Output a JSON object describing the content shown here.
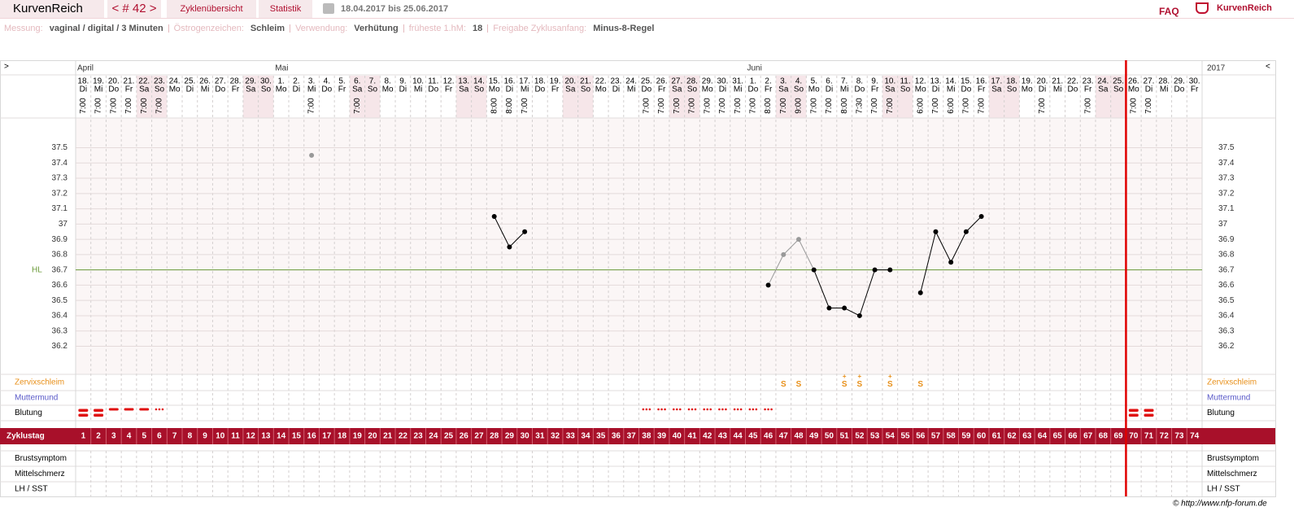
{
  "nav": {
    "brand": "KurvenReich",
    "cycle": "< # 42 >",
    "overview": "Zyklenübersicht",
    "stats": "Statistik",
    "range": "18.04.2017 bis 25.06.2017",
    "faq": "FAQ",
    "logo": "KurvenReich"
  },
  "info": [
    {
      "label": "Messung:",
      "value": "vaginal / digital / 3 Minuten"
    },
    {
      "label": "Östrogenzeichen:",
      "value": "Schleim"
    },
    {
      "label": "Verwendung:",
      "value": "Verhütung"
    },
    {
      "label": "früheste 1.hM:",
      "value": "18"
    },
    {
      "label": "Freigabe Zyklusanfang:",
      "value": "Minus-8-Regel"
    }
  ],
  "footer": "© http://www.nfp-forum.de",
  "chart_data": {
    "type": "line",
    "prev": ">",
    "next": "<",
    "year": "2017",
    "months": [
      "April",
      null,
      null,
      null,
      null,
      null,
      null,
      null,
      null,
      null,
      null,
      null,
      null,
      "Mai",
      null,
      null,
      null,
      null,
      null,
      null,
      null,
      null,
      null,
      null,
      null,
      null,
      null,
      null,
      null,
      null,
      null,
      null,
      null,
      null,
      null,
      null,
      null,
      null,
      null,
      null,
      null,
      null,
      null,
      null,
      "Juni",
      null,
      null,
      null,
      null,
      null,
      null,
      null,
      null,
      null,
      null,
      null,
      null,
      null,
      null,
      null,
      null,
      null,
      null,
      null,
      null,
      null,
      null,
      null,
      null,
      null,
      null,
      null,
      null,
      null
    ],
    "dates": [
      "18.",
      "19.",
      "20.",
      "21.",
      "22.",
      "23.",
      "24.",
      "25.",
      "26.",
      "27.",
      "28.",
      "29.",
      "30.",
      "1.",
      "2.",
      "3.",
      "4.",
      "5.",
      "6.",
      "7.",
      "8.",
      "9.",
      "10.",
      "11.",
      "12.",
      "13.",
      "14.",
      "15.",
      "16.",
      "17.",
      "18.",
      "19.",
      "20.",
      "21.",
      "22.",
      "23.",
      "24.",
      "25.",
      "26.",
      "27.",
      "28.",
      "29.",
      "30.",
      "31.",
      "1.",
      "2.",
      "3.",
      "4.",
      "5.",
      "6.",
      "7.",
      "8.",
      "9.",
      "10.",
      "11.",
      "12.",
      "13.",
      "14.",
      "15.",
      "16.",
      "17.",
      "18.",
      "19.",
      "20.",
      "21.",
      "22.",
      "23.",
      "24.",
      "25.",
      "26.",
      "27.",
      "28.",
      "29.",
      "30."
    ],
    "weekdays": [
      "Di",
      "Mi",
      "Do",
      "Fr",
      "Sa",
      "So",
      "Mo",
      "Di",
      "Mi",
      "Do",
      "Fr",
      "Sa",
      "So",
      "Mo",
      "Di",
      "Mi",
      "Do",
      "Fr",
      "Sa",
      "So",
      "Mo",
      "Di",
      "Mi",
      "Do",
      "Fr",
      "Sa",
      "So",
      "Mo",
      "Di",
      "Mi",
      "Do",
      "Fr",
      "Sa",
      "So",
      "Mo",
      "Di",
      "Mi",
      "Do",
      "Fr",
      "Sa",
      "So",
      "Mo",
      "Di",
      "Mi",
      "Do",
      "Fr",
      "Sa",
      "So",
      "Mo",
      "Di",
      "Mi",
      "Do",
      "Fr",
      "Sa",
      "So",
      "Mo",
      "Di",
      "Mi",
      "Do",
      "Fr",
      "Sa",
      "So",
      "Mo",
      "Di",
      "Mi",
      "Do",
      "Fr",
      "Sa",
      "So",
      "Mo",
      "Di",
      "Mi",
      "Do",
      "Fr"
    ],
    "weekend": [
      "Sa",
      "So"
    ],
    "times": [
      "7:00",
      "7:00",
      "7:00",
      "7:00",
      "7:00",
      "7:00",
      null,
      null,
      null,
      null,
      null,
      null,
      null,
      null,
      null,
      "7:00",
      null,
      null,
      "7:00",
      null,
      null,
      null,
      null,
      null,
      null,
      null,
      null,
      "8:00",
      "8:00",
      "7:00",
      null,
      null,
      null,
      null,
      null,
      null,
      null,
      "7:00",
      "7:00",
      "7:00",
      "7:00",
      "7:00",
      "7:00",
      "7:00",
      "7:00",
      "8:00",
      "7:00",
      "9:00",
      "7:00",
      "7:00",
      "8:00",
      "7:30",
      "7:00",
      "7:00",
      null,
      "6:00",
      "7:00",
      "6:00",
      "7:00",
      "7:00",
      null,
      null,
      null,
      "7:00",
      null,
      null,
      "7:00",
      null,
      null,
      "7:00",
      "7:00",
      null,
      null,
      null
    ],
    "cycle_days": [
      1,
      2,
      3,
      4,
      5,
      6,
      7,
      8,
      9,
      10,
      11,
      12,
      13,
      14,
      15,
      16,
      17,
      18,
      19,
      20,
      21,
      22,
      23,
      24,
      25,
      26,
      27,
      28,
      29,
      30,
      31,
      32,
      33,
      34,
      35,
      36,
      37,
      38,
      39,
      40,
      41,
      42,
      43,
      44,
      45,
      46,
      47,
      48,
      49,
      50,
      51,
      52,
      53,
      54,
      55,
      56,
      57,
      58,
      59,
      60,
      61,
      62,
      63,
      64,
      65,
      66,
      67,
      68,
      69,
      70,
      71,
      72,
      73,
      74
    ],
    "next_cycle_start": 70,
    "cycle_break_color": "#e00000",
    "temperature": {
      "color": "#000000",
      "excluded_color": "#999999",
      "values": [
        null,
        null,
        null,
        null,
        null,
        null,
        null,
        null,
        null,
        null,
        null,
        null,
        null,
        null,
        null,
        37.45,
        null,
        null,
        null,
        null,
        null,
        null,
        null,
        null,
        null,
        null,
        null,
        37.05,
        36.85,
        36.95,
        null,
        null,
        null,
        null,
        null,
        null,
        null,
        null,
        null,
        null,
        null,
        null,
        null,
        null,
        null,
        36.6,
        36.8,
        36.9,
        36.7,
        36.45,
        36.45,
        36.4,
        36.7,
        36.7,
        null,
        36.55,
        36.95,
        36.75,
        36.95,
        37.05,
        null,
        null,
        null,
        null,
        null,
        null,
        null,
        null,
        null,
        null,
        null,
        null,
        null,
        null
      ],
      "excluded": [
        false,
        false,
        false,
        false,
        false,
        false,
        false,
        false,
        false,
        false,
        false,
        false,
        false,
        false,
        false,
        true,
        false,
        false,
        false,
        false,
        false,
        false,
        false,
        false,
        false,
        false,
        false,
        false,
        false,
        false,
        false,
        false,
        false,
        false,
        false,
        false,
        false,
        false,
        false,
        false,
        false,
        false,
        false,
        false,
        false,
        false,
        true,
        true,
        false,
        false,
        false,
        false,
        false,
        false,
        false,
        false,
        false,
        false,
        false,
        false,
        false,
        false,
        false,
        false,
        false,
        false,
        false,
        false,
        false,
        false,
        false,
        false,
        false,
        false
      ]
    },
    "hl": {
      "label": "HL",
      "value": 36.7,
      "color": "#6b9b3a"
    },
    "ylim": [
      36.0,
      37.7
    ],
    "yticks": [
      36.2,
      36.3,
      36.4,
      36.5,
      36.6,
      36.7,
      36.8,
      36.9,
      37,
      37.1,
      37.2,
      37.3,
      37.4,
      37.5
    ],
    "grid": true,
    "rows": {
      "mucus": "Zervixschleim",
      "cervix": "Muttermund",
      "bleeding": "Blutung",
      "cycle_day": "Zyklustag",
      "breast": "Brustsymptom",
      "pain": "Mittelschmerz",
      "lh": "LH / SST"
    },
    "mucus": [
      null,
      null,
      null,
      null,
      null,
      null,
      null,
      null,
      null,
      null,
      null,
      null,
      null,
      null,
      null,
      null,
      null,
      null,
      null,
      null,
      null,
      null,
      null,
      null,
      null,
      null,
      null,
      null,
      null,
      null,
      null,
      null,
      null,
      null,
      null,
      null,
      null,
      null,
      null,
      null,
      null,
      null,
      null,
      null,
      null,
      null,
      "S",
      "S",
      null,
      null,
      "S+",
      "S+",
      null,
      "S+",
      null,
      "S",
      null,
      null,
      null,
      null,
      null,
      null,
      null,
      null,
      null,
      null,
      null,
      null,
      null,
      null,
      null,
      null,
      null,
      null
    ],
    "mucus_color": "#e8901a",
    "cervix_color": "#5a5ac8",
    "bleeding_color": "#e01010",
    "bleeding": [
      3,
      3,
      2,
      2,
      2,
      1,
      null,
      null,
      null,
      null,
      null,
      null,
      null,
      null,
      null,
      null,
      null,
      null,
      null,
      null,
      null,
      null,
      null,
      null,
      null,
      null,
      null,
      null,
      null,
      null,
      null,
      null,
      null,
      null,
      null,
      null,
      null,
      1,
      1,
      1,
      1,
      1,
      1,
      1,
      1,
      1,
      null,
      null,
      null,
      null,
      null,
      null,
      null,
      null,
      null,
      null,
      null,
      null,
      null,
      null,
      null,
      null,
      null,
      null,
      null,
      null,
      null,
      null,
      null,
      3,
      3,
      null,
      null,
      null
    ]
  }
}
